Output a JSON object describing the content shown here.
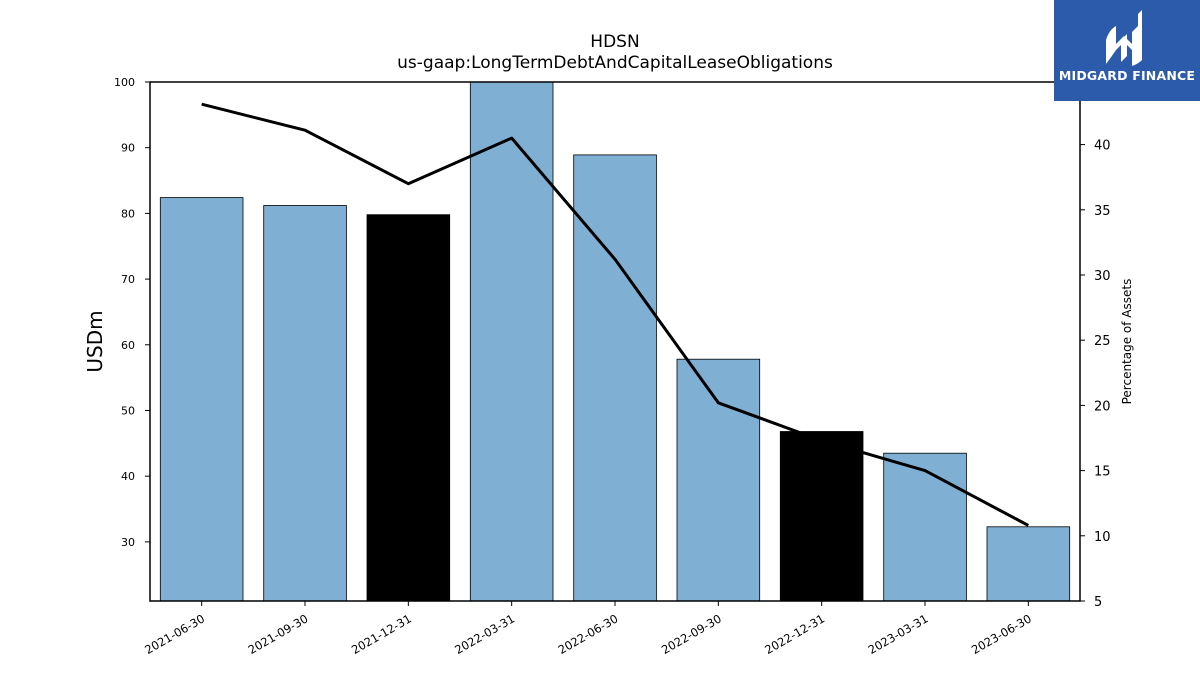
{
  "chart_data": {
    "type": "bar",
    "title": "HDSN",
    "subtitle": "us-gaap:LongTermDebtAndCapitalLeaseObligations",
    "ylabel": "USDm",
    "y2label": "Percentage of Assets",
    "categories": [
      "2021-06-30",
      "2021-09-30",
      "2021-12-31",
      "2022-03-31",
      "2022-06-30",
      "2022-09-30",
      "2022-12-31",
      "2023-03-31",
      "2023-06-30"
    ],
    "series": [
      {
        "type": "bar",
        "axis": "left",
        "values": [
          82.4,
          81.2,
          79.8,
          100.0,
          88.9,
          57.8,
          46.8,
          43.5,
          32.3
        ],
        "colors": [
          "#7fb0d4",
          "#7fb0d4",
          "#000000",
          "#7fb0d4",
          "#7fb0d4",
          "#7fb0d4",
          "#000000",
          "#7fb0d4",
          "#7fb0d4"
        ]
      },
      {
        "type": "line",
        "axis": "right",
        "color": "#000000",
        "values": [
          43.1,
          41.1,
          37.0,
          40.5,
          31.2,
          20.2,
          17.3,
          15.0,
          10.8
        ]
      }
    ],
    "ylim": [
      21,
      100
    ],
    "y2lim": [
      5,
      44.8
    ],
    "yticks": [
      30,
      40,
      50,
      60,
      70,
      80,
      90,
      100
    ],
    "y2ticks": [
      5,
      10,
      15,
      20,
      25,
      30,
      35,
      40
    ],
    "grid": false
  },
  "logo": {
    "text": "MIDGARD FINANCE",
    "icon": "midgard-logo-icon",
    "bg_color": "#2d5bab"
  }
}
